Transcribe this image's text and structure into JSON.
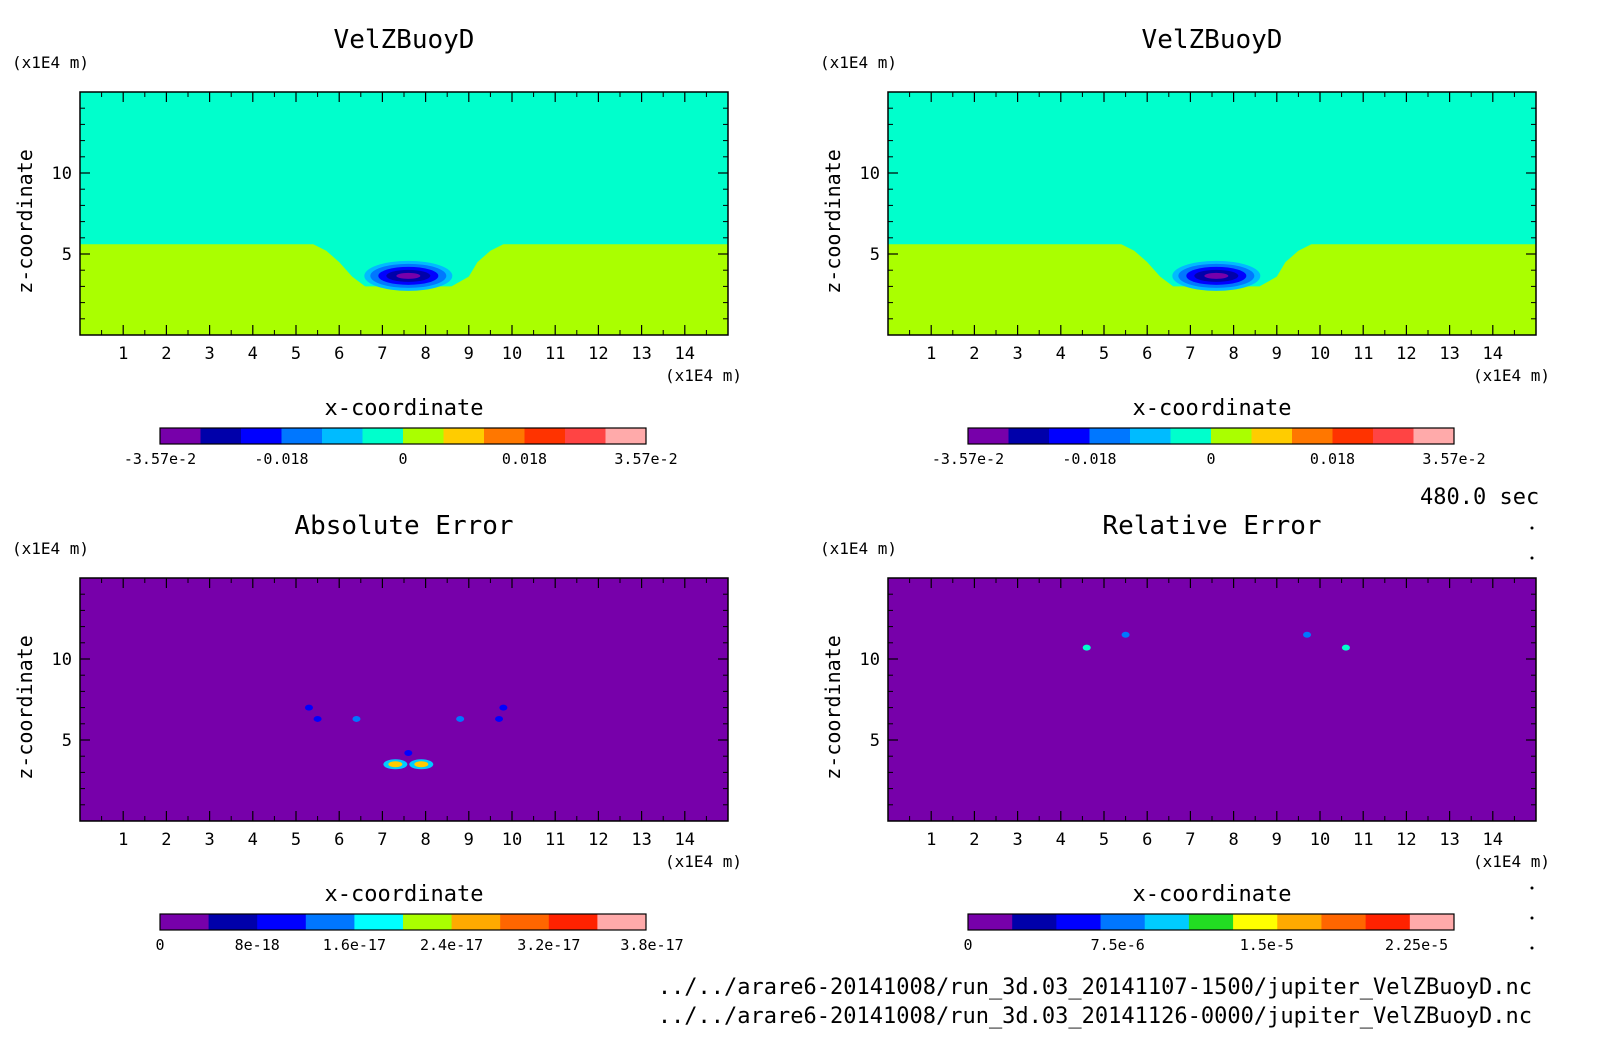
{
  "time_label": "480.0 sec",
  "footer": {
    "path1": "../../arare6-20141008/run_3d.03_20141107-1500/jupiter_VelZBuoyD.nc",
    "path2": "../../arare6-20141008/run_3d.03_20141126-0000/jupiter_VelZBuoyD.nc"
  },
  "chart_data": [
    {
      "type": "heatmap",
      "title": "VelZBuoyD",
      "xlabel": "x-coordinate",
      "ylabel": "z-coordinate",
      "x_unit": "(x1E4 m)",
      "y_unit": "(x1E4 m)",
      "xlim": [
        0,
        15
      ],
      "ylim": [
        0,
        15
      ],
      "x_ticks": [
        1,
        2,
        3,
        4,
        5,
        6,
        7,
        8,
        9,
        10,
        11,
        12,
        13,
        14
      ],
      "y_ticks": [
        5,
        10
      ],
      "background_level": 0,
      "regions": [
        {
          "desc": "upper layer",
          "level": 0,
          "color": "#00ffcc"
        },
        {
          "desc": "lower layer z < 5.5 with trough near x 6-10",
          "level": 1,
          "color": "#aaff00"
        },
        {
          "desc": "thermal near x 7.6 z 3.8",
          "level": -1,
          "color": "#0000ff"
        }
      ],
      "colorbar": {
        "colors": [
          "#7700aa",
          "#0000aa",
          "#0000ff",
          "#0077ff",
          "#00bbff",
          "#00ffcc",
          "#aaff00",
          "#ffcc00",
          "#ff7700",
          "#ff3300",
          "#ff4444",
          "#ffaaaa"
        ],
        "tick_labels": [
          "-3.57e-2",
          "-0.018",
          "0",
          "0.018",
          "3.57e-2"
        ]
      }
    },
    {
      "type": "heatmap",
      "title": "VelZBuoyD",
      "xlabel": "x-coordinate",
      "ylabel": "z-coordinate",
      "x_unit": "(x1E4 m)",
      "y_unit": "(x1E4 m)",
      "xlim": [
        0,
        15
      ],
      "ylim": [
        0,
        15
      ],
      "x_ticks": [
        1,
        2,
        3,
        4,
        5,
        6,
        7,
        8,
        9,
        10,
        11,
        12,
        13,
        14
      ],
      "y_ticks": [
        5,
        10
      ],
      "colorbar": {
        "colors": [
          "#7700aa",
          "#0000aa",
          "#0000ff",
          "#0077ff",
          "#00bbff",
          "#00ffcc",
          "#aaff00",
          "#ffcc00",
          "#ff7700",
          "#ff3300",
          "#ff4444",
          "#ffaaaa"
        ],
        "tick_labels": [
          "-3.57e-2",
          "-0.018",
          "0",
          "0.018",
          "3.57e-2"
        ]
      }
    },
    {
      "type": "heatmap",
      "title": "Absolute Error",
      "xlabel": "x-coordinate",
      "ylabel": "z-coordinate",
      "x_unit": "(x1E4 m)",
      "y_unit": "(x1E4 m)",
      "xlim": [
        0,
        15
      ],
      "ylim": [
        0,
        15
      ],
      "x_ticks": [
        1,
        2,
        3,
        4,
        5,
        6,
        7,
        8,
        9,
        10,
        11,
        12,
        13,
        14
      ],
      "y_ticks": [
        5,
        10
      ],
      "spots": [
        {
          "x": 5.3,
          "z": 7.0,
          "color": "#0000ff"
        },
        {
          "x": 5.5,
          "z": 6.3,
          "color": "#0000ff"
        },
        {
          "x": 6.4,
          "z": 6.3,
          "color": "#0077ff"
        },
        {
          "x": 8.8,
          "z": 6.3,
          "color": "#0077ff"
        },
        {
          "x": 9.7,
          "z": 6.3,
          "color": "#0000ff"
        },
        {
          "x": 9.8,
          "z": 7.0,
          "color": "#0000ff"
        },
        {
          "x": 7.3,
          "z": 3.5,
          "color": "#ffcc00"
        },
        {
          "x": 7.9,
          "z": 3.5,
          "color": "#ffcc00"
        },
        {
          "x": 7.6,
          "z": 4.2,
          "color": "#0000ff"
        }
      ],
      "colorbar": {
        "colors": [
          "#7700aa",
          "#0000aa",
          "#0000ff",
          "#0077ff",
          "#00ffff",
          "#aaff00",
          "#ffaa00",
          "#ff6600",
          "#ff2200",
          "#ffaaaa"
        ],
        "tick_labels": [
          "0",
          "8e-18",
          "1.6e-17",
          "2.4e-17",
          "3.2e-17",
          "3.8e-17"
        ]
      }
    },
    {
      "type": "heatmap",
      "title": "Relative Error",
      "xlabel": "x-coordinate",
      "ylabel": "z-coordinate",
      "x_unit": "(x1E4 m)",
      "y_unit": "(x1E4 m)",
      "xlim": [
        0,
        15
      ],
      "ylim": [
        0,
        15
      ],
      "x_ticks": [
        1,
        2,
        3,
        4,
        5,
        6,
        7,
        8,
        9,
        10,
        11,
        12,
        13,
        14
      ],
      "y_ticks": [
        5,
        10
      ],
      "spots": [
        {
          "x": 4.6,
          "z": 10.7,
          "color": "#00ffcc"
        },
        {
          "x": 5.5,
          "z": 11.5,
          "color": "#0077ff"
        },
        {
          "x": 9.7,
          "z": 11.5,
          "color": "#0077ff"
        },
        {
          "x": 10.6,
          "z": 10.7,
          "color": "#00ffcc"
        }
      ],
      "colorbar": {
        "colors": [
          "#7700aa",
          "#0000aa",
          "#0000ff",
          "#0077ff",
          "#00ccff",
          "#22dd22",
          "#ffff00",
          "#ffaa00",
          "#ff6600",
          "#ff2200",
          "#ffaaaa"
        ],
        "tick_labels": [
          "0",
          "7.5e-6",
          "1.5e-5",
          "2.25e-5"
        ]
      }
    }
  ]
}
